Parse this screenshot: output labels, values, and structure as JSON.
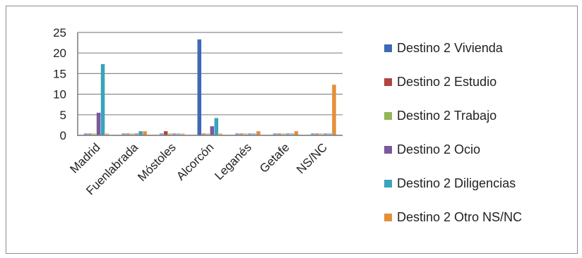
{
  "chart_data": {
    "type": "bar",
    "categories": [
      "Madrid",
      "Fuenlabrada",
      "Móstoles",
      "Alcorcón",
      "Leganés",
      "Getafe",
      "NS/NC"
    ],
    "series": [
      {
        "name": "Destino 2 Vivienda",
        "color": "#3e69b3",
        "values": [
          0,
          0,
          0,
          23.3,
          0,
          0,
          0
        ]
      },
      {
        "name": "Destino 2 Estudio",
        "color": "#b04541",
        "values": [
          0,
          0,
          1,
          0,
          0,
          0,
          0
        ]
      },
      {
        "name": "Destino 2 Trabajo",
        "color": "#93b65a",
        "values": [
          0,
          0,
          0,
          0,
          0,
          0,
          0
        ]
      },
      {
        "name": "Destino 2 Ocio",
        "color": "#7a5a9c",
        "values": [
          5.5,
          0,
          0,
          2.2,
          0,
          0,
          0
        ]
      },
      {
        "name": "Destino 2 Diligencias",
        "color": "#3aa3bd",
        "values": [
          17.3,
          1,
          0,
          4.2,
          0,
          0,
          0
        ]
      },
      {
        "name": "Destino 2 Otro NS/NC",
        "color": "#e58f3a",
        "values": [
          0,
          1,
          0,
          0,
          1,
          1,
          12.3
        ]
      }
    ],
    "y_ticks": [
      "0",
      "5",
      "10",
      "15",
      "20",
      "25"
    ],
    "ylim": [
      0,
      25
    ],
    "legend_position": "right",
    "grid": true
  }
}
